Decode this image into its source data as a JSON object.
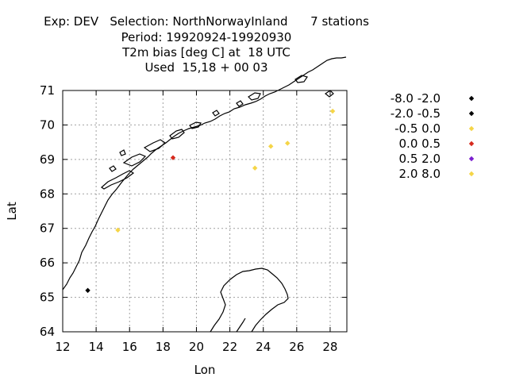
{
  "header": {
    "line1_exp": "Exp: DEV",
    "line1_selection": "Selection: NorthNorwayInland",
    "line1_stations": "7 stations",
    "line2": "Period: 19920924-19920930",
    "line3": "T2m bias [deg C] at  18 UTC",
    "line4": "Used  15,18 + 00 03"
  },
  "chart_data": {
    "type": "scatter",
    "xlabel": "Lon",
    "ylabel": "Lat",
    "xlim": [
      12,
      29
    ],
    "ylim": [
      64,
      71
    ],
    "xticks": [
      12,
      14,
      16,
      18,
      20,
      22,
      24,
      26,
      28
    ],
    "yticks": [
      64,
      65,
      66,
      67,
      68,
      69,
      70,
      71
    ],
    "grid": true,
    "legend_position": "right",
    "legend": [
      {
        "label": "-8.0 -2.0",
        "color": "#000000"
      },
      {
        "label": "-2.0 -0.5",
        "color": "#000000"
      },
      {
        "label": "-0.5 0.0",
        "color": "#f5d547"
      },
      {
        "label": "0.0 0.5",
        "color": "#d62a1e"
      },
      {
        "label": "0.5 2.0",
        "color": "#7b1fd0"
      },
      {
        "label": "2.0 8.0",
        "color": "#f5d547"
      }
    ],
    "points": [
      {
        "lon": 13.5,
        "lat": 65.2,
        "color": "#000000"
      },
      {
        "lon": 15.3,
        "lat": 66.95,
        "color": "#f5d547"
      },
      {
        "lon": 18.6,
        "lat": 69.05,
        "color": "#d62a1e"
      },
      {
        "lon": 23.5,
        "lat": 68.75,
        "color": "#f5d547"
      },
      {
        "lon": 24.45,
        "lat": 69.38,
        "color": "#f5d547"
      },
      {
        "lon": 25.45,
        "lat": 69.47,
        "color": "#f5d547"
      },
      {
        "lon": 28.15,
        "lat": 70.4,
        "color": "#f5d547"
      }
    ]
  }
}
